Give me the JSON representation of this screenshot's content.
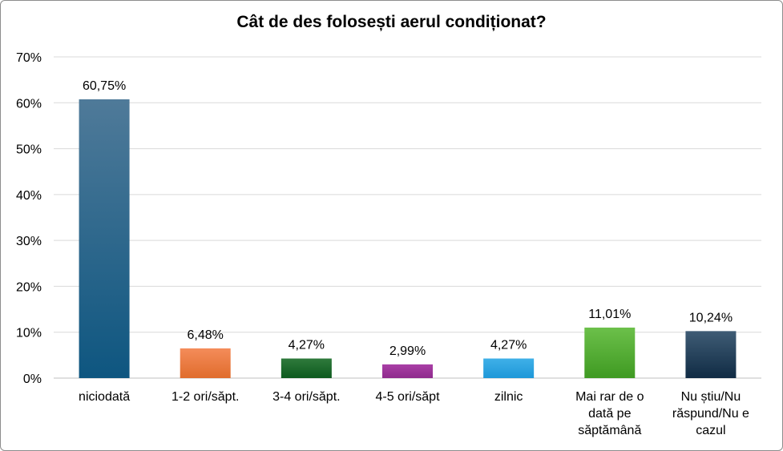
{
  "chart_data": {
    "type": "bar",
    "title": "Cât de des folosești aerul condiționat?",
    "xlabel": "",
    "ylabel": "",
    "ylim": [
      0,
      70
    ],
    "yticks": [
      0,
      10,
      20,
      30,
      40,
      50,
      60,
      70
    ],
    "ytick_labels": [
      "0%",
      "10%",
      "20%",
      "30%",
      "40%",
      "50%",
      "60%",
      "70%"
    ],
    "grid": true,
    "legend": "none",
    "categories": [
      [
        "niciodată"
      ],
      [
        "1-2 ori/săpt."
      ],
      [
        "3-4 ori/săpt."
      ],
      [
        "4-5 ori/săpt"
      ],
      [
        "zilnic"
      ],
      [
        "Mai rar de o",
        "dată pe",
        "săptămână"
      ],
      [
        "Nu știu/Nu",
        "răspund/Nu e",
        "cazul"
      ]
    ],
    "values": [
      60.75,
      6.48,
      4.27,
      2.99,
      4.27,
      11.01,
      10.24
    ],
    "data_labels": [
      "60,75%",
      "6,48%",
      "4,27%",
      "2,99%",
      "4,27%",
      "11,01%",
      "10,24%"
    ],
    "colors": [
      [
        "#4f7a99",
        "#0e5680"
      ],
      [
        "#f48c5a",
        "#e06c2c"
      ],
      [
        "#2f7a3c",
        "#0d5a1e"
      ],
      [
        "#a93fa6",
        "#8e2a8c"
      ],
      [
        "#3fb0e8",
        "#1e98d8"
      ],
      [
        "#6cc04a",
        "#3f9a22"
      ],
      [
        "#3f5c75",
        "#102b44"
      ]
    ]
  }
}
